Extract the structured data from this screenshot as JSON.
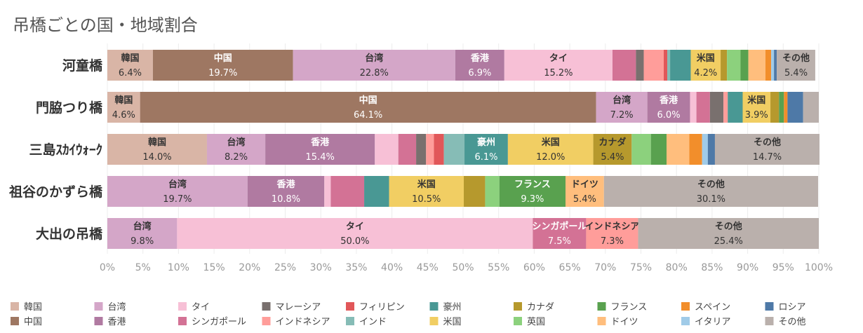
{
  "chart_data": {
    "type": "bar",
    "orientation": "horizontal",
    "stacked": true,
    "normalized": true,
    "title": "吊橋ごとの国・地域割合",
    "xlim": [
      0,
      100
    ],
    "x_ticks": [
      "0%",
      "5%",
      "10%",
      "15%",
      "20%",
      "25%",
      "30%",
      "35%",
      "40%",
      "45%",
      "50%",
      "55%",
      "60%",
      "65%",
      "70%",
      "75%",
      "80%",
      "85%",
      "90%",
      "95%",
      "100%"
    ],
    "grid": true,
    "legend_position": "bottom",
    "categories": [
      "河童橋",
      "門脇つり橋",
      "三島ｽｶｲｳｫｰｸ",
      "祖谷のかずら橋",
      "大出の吊橋"
    ],
    "legend": [
      {
        "name": "韓国",
        "color": "#d9b5a6"
      },
      {
        "name": "中国",
        "color": "#9e7762"
      },
      {
        "name": "台湾",
        "color": "#d4a6c8"
      },
      {
        "name": "香港",
        "color": "#b07aa1"
      },
      {
        "name": "タイ",
        "color": "#f7c0d6"
      },
      {
        "name": "シンガポール",
        "color": "#d37295"
      },
      {
        "name": "マレーシア",
        "color": "#79706e"
      },
      {
        "name": "インドネシア",
        "color": "#ff9d9a"
      },
      {
        "name": "フィリピン",
        "color": "#e15759"
      },
      {
        "name": "インド",
        "color": "#86bcb6"
      },
      {
        "name": "豪州",
        "color": "#499894"
      },
      {
        "name": "米国",
        "color": "#f1ce63"
      },
      {
        "name": "カナダ",
        "color": "#b6992d"
      },
      {
        "name": "英国",
        "color": "#8cd17d"
      },
      {
        "name": "フランス",
        "color": "#59a14f"
      },
      {
        "name": "ドイツ",
        "color": "#ffbe7d"
      },
      {
        "name": "スペイン",
        "color": "#f28e2b"
      },
      {
        "name": "イタリア",
        "color": "#a0cbe8"
      },
      {
        "name": "ロシア",
        "color": "#4e79a7"
      },
      {
        "name": "その他",
        "color": "#bab0ac"
      }
    ],
    "rows": [
      {
        "name": "河童橋",
        "segments": [
          {
            "key": "韓国",
            "value": 6.4,
            "label": "6.4%"
          },
          {
            "key": "中国",
            "value": 19.7,
            "label": "19.7%"
          },
          {
            "key": "台湾",
            "value": 22.8,
            "label": "22.8%"
          },
          {
            "key": "香港",
            "value": 6.9,
            "label": "6.9%"
          },
          {
            "key": "タイ",
            "value": 15.2,
            "label": "15.2%"
          },
          {
            "key": "シンガポール",
            "value": 3.3
          },
          {
            "key": "マレーシア",
            "value": 1.1
          },
          {
            "key": "インドネシア",
            "value": 2.8
          },
          {
            "key": "フィリピン",
            "value": 0.5
          },
          {
            "key": "インド",
            "value": 0.4
          },
          {
            "key": "豪州",
            "value": 2.9
          },
          {
            "key": "米国",
            "value": 4.2,
            "label": "4.2%"
          },
          {
            "key": "カナダ",
            "value": 0.9
          },
          {
            "key": "英国",
            "value": 1.9
          },
          {
            "key": "フランス",
            "value": 1.1
          },
          {
            "key": "ドイツ",
            "value": 2.4
          },
          {
            "key": "スペイン",
            "value": 0.8
          },
          {
            "key": "イタリア",
            "value": 0.4
          },
          {
            "key": "ロシア",
            "value": 0.4
          },
          {
            "key": "その他",
            "value": 5.4,
            "label": "5.4%"
          }
        ]
      },
      {
        "name": "門脇つり橋",
        "segments": [
          {
            "key": "韓国",
            "value": 4.6,
            "label": "4.6%"
          },
          {
            "key": "中国",
            "value": 64.1,
            "label": "64.1%"
          },
          {
            "key": "台湾",
            "value": 7.2,
            "label": "7.2%"
          },
          {
            "key": "香港",
            "value": 6.0,
            "label": "6.0%"
          },
          {
            "key": "タイ",
            "value": 0.9
          },
          {
            "key": "シンガポール",
            "value": 1.9
          },
          {
            "key": "マレーシア",
            "value": 1.9
          },
          {
            "key": "インドネシア",
            "value": 0.6
          },
          {
            "key": "豪州",
            "value": 2.1
          },
          {
            "key": "米国",
            "value": 3.9,
            "label": "3.9%"
          },
          {
            "key": "カナダ",
            "value": 1.2
          },
          {
            "key": "フランス",
            "value": 0.7
          },
          {
            "key": "スペイン",
            "value": 0.5
          },
          {
            "key": "ロシア",
            "value": 2.2
          },
          {
            "key": "その他",
            "value": 2.2
          }
        ]
      },
      {
        "name": "三島ｽｶｲｳｫｰｸ",
        "segments": [
          {
            "key": "韓国",
            "value": 14.0,
            "label": "14.0%"
          },
          {
            "key": "台湾",
            "value": 8.2,
            "label": "8.2%"
          },
          {
            "key": "香港",
            "value": 15.4,
            "label": "15.4%"
          },
          {
            "key": "タイ",
            "value": 3.3
          },
          {
            "key": "シンガポール",
            "value": 2.5
          },
          {
            "key": "マレーシア",
            "value": 1.4
          },
          {
            "key": "インドネシア",
            "value": 1.1
          },
          {
            "key": "フィリピン",
            "value": 1.4
          },
          {
            "key": "インド",
            "value": 2.9
          },
          {
            "key": "豪州",
            "value": 6.1,
            "label": "6.1%"
          },
          {
            "key": "米国",
            "value": 12.0,
            "label": "12.0%"
          },
          {
            "key": "カナダ",
            "value": 5.4,
            "label": "5.4%"
          },
          {
            "key": "英国",
            "value": 2.7
          },
          {
            "key": "フランス",
            "value": 2.2
          },
          {
            "key": "ドイツ",
            "value": 3.2
          },
          {
            "key": "スペイン",
            "value": 1.8
          },
          {
            "key": "イタリア",
            "value": 0.8
          },
          {
            "key": "ロシア",
            "value": 1.0
          },
          {
            "key": "その他",
            "value": 14.7,
            "label": "14.7%"
          }
        ]
      },
      {
        "name": "祖谷のかずら橋",
        "segments": [
          {
            "key": "台湾",
            "value": 19.7,
            "label": "19.7%"
          },
          {
            "key": "香港",
            "value": 10.8,
            "label": "10.8%"
          },
          {
            "key": "タイ",
            "value": 0.9
          },
          {
            "key": "シンガポール",
            "value": 4.7
          },
          {
            "key": "豪州",
            "value": 3.5
          },
          {
            "key": "米国",
            "value": 10.5,
            "label": "10.5%"
          },
          {
            "key": "カナダ",
            "value": 3.0
          },
          {
            "key": "英国",
            "value": 2.0
          },
          {
            "key": "フランス",
            "value": 9.3,
            "label": "9.3%"
          },
          {
            "key": "ドイツ",
            "value": 5.4,
            "label": "5.4%"
          },
          {
            "key": "その他",
            "value": 30.1,
            "label": "30.1%"
          }
        ]
      },
      {
        "name": "大出の吊橋",
        "segments": [
          {
            "key": "台湾",
            "value": 9.8,
            "label": "9.8%"
          },
          {
            "key": "タイ",
            "value": 50.0,
            "label": "50.0%"
          },
          {
            "key": "シンガポール",
            "value": 7.5,
            "label": "7.5%"
          },
          {
            "key": "インドネシア",
            "value": 7.3,
            "label": "7.3%"
          },
          {
            "key": "その他",
            "value": 25.4,
            "label": "25.4%"
          }
        ]
      }
    ]
  }
}
